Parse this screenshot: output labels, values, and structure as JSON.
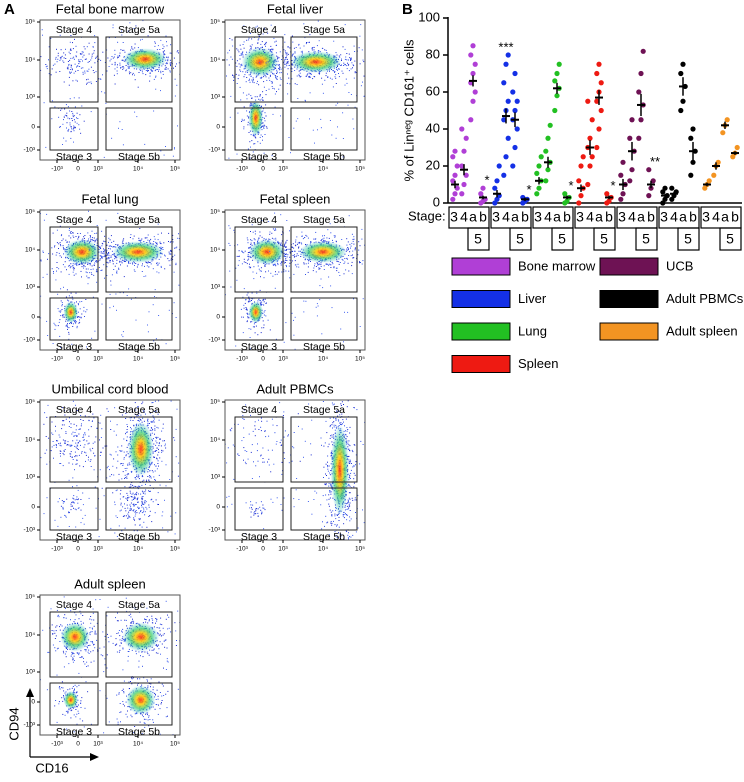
{
  "panel_a": {
    "label": "A",
    "plots": [
      {
        "title": "Fetal bone marrow"
      },
      {
        "title": "Fetal liver"
      },
      {
        "title": "Fetal lung"
      },
      {
        "title": "Fetal spleen"
      },
      {
        "title": "Umbilical cord blood"
      },
      {
        "title": "Adult PBMCs"
      },
      {
        "title": "Adult spleen"
      }
    ],
    "gates": [
      "Stage 4",
      "Stage 5a",
      "Stage 3",
      "Stage 5b"
    ],
    "xticks": [
      "-10³",
      "0",
      "10³",
      "10⁴",
      "10⁵"
    ],
    "yticks": [
      "10⁵",
      "10⁴",
      "10³",
      "0",
      "-10³"
    ],
    "x_axis_label": "CD16",
    "y_axis_label": "CD94"
  },
  "chart_data": {
    "type": "dot",
    "panel_label": "B",
    "y_label": "% of Linⁿᵉᵍ CD161⁺ cells",
    "stage_label": "Stage:",
    "categories": [
      "3",
      "4",
      "a",
      "b"
    ],
    "category_group_label": "5",
    "ylim": [
      0,
      100
    ],
    "yticks": [
      0,
      20,
      40,
      60,
      80,
      100
    ],
    "series": [
      {
        "name": "Bone marrow",
        "color": "#b03fd6",
        "values": [
          10,
          18,
          66,
          3
        ],
        "errors": [
          2,
          3,
          3,
          1
        ],
        "points": [
          [
            2,
            5,
            8,
            12,
            15,
            20,
            25,
            28
          ],
          [
            5,
            10,
            15,
            20,
            28,
            35,
            40
          ],
          [
            45,
            55,
            60,
            65,
            70,
            75,
            80,
            85
          ],
          [
            0,
            1,
            2,
            5,
            8
          ]
        ]
      },
      {
        "name": "Liver",
        "color": "#1430e6",
        "values": [
          5,
          47,
          45,
          2
        ],
        "errors": [
          2,
          4,
          4,
          1
        ],
        "points": [
          [
            0,
            2,
            4,
            8,
            12,
            20
          ],
          [
            15,
            25,
            35,
            45,
            50,
            55,
            65,
            75,
            80
          ],
          [
            20,
            30,
            40,
            45,
            50,
            55,
            60,
            70
          ],
          [
            0,
            1,
            2,
            3
          ]
        ]
      },
      {
        "name": "Lung",
        "color": "#22c022",
        "values": [
          12,
          22,
          62,
          3
        ],
        "errors": [
          2,
          3,
          3,
          1
        ],
        "points": [
          [
            5,
            8,
            12,
            16,
            20,
            25
          ],
          [
            12,
            18,
            22,
            28,
            35,
            42
          ],
          [
            50,
            58,
            62,
            66,
            70,
            75
          ],
          [
            0,
            1,
            3,
            5
          ]
        ]
      },
      {
        "name": "Spleen",
        "color": "#ee1a12",
        "values": [
          8,
          30,
          57,
          3
        ],
        "errors": [
          2,
          4,
          4,
          1
        ],
        "points": [
          [
            0,
            4,
            8,
            12,
            20,
            25
          ],
          [
            10,
            20,
            25,
            30,
            35,
            45,
            55
          ],
          [
            30,
            40,
            50,
            55,
            60,
            65,
            70,
            75
          ],
          [
            0,
            1,
            3,
            5
          ]
        ]
      },
      {
        "name": "UCB",
        "color": "#6e1254",
        "values": [
          10,
          28,
          53,
          10
        ],
        "errors": [
          3,
          5,
          6,
          2
        ],
        "points": [
          [
            2,
            5,
            10,
            15,
            22
          ],
          [
            12,
            18,
            28,
            35,
            45
          ],
          [
            35,
            45,
            53,
            60,
            70,
            82
          ],
          [
            4,
            8,
            12,
            18
          ]
        ]
      },
      {
        "name": "Adult PBMCs",
        "color": "#000000",
        "values": [
          4,
          5,
          63,
          28
        ],
        "errors": [
          1,
          1,
          5,
          5
        ],
        "points": [
          [
            0,
            2,
            4,
            6,
            8
          ],
          [
            2,
            4,
            6,
            8
          ],
          [
            50,
            55,
            63,
            70,
            75
          ],
          [
            15,
            22,
            28,
            35,
            40
          ]
        ]
      },
      {
        "name": "Adult spleen",
        "color": "#f39422",
        "values": [
          10,
          20,
          42,
          27
        ],
        "errors": [
          1,
          2,
          2,
          1
        ],
        "points": [
          [
            8,
            10,
            12
          ],
          [
            15,
            20,
            22
          ],
          [
            38,
            42,
            45
          ],
          [
            25,
            27,
            30
          ]
        ]
      }
    ],
    "annotations": [
      {
        "text": "***",
        "series": 1,
        "category": 1
      },
      {
        "text": "*",
        "series": 0,
        "category": 3
      },
      {
        "text": "*",
        "series": 1,
        "category": 3
      },
      {
        "text": "*",
        "series": 2,
        "category": 3
      },
      {
        "text": "*",
        "series": 3,
        "category": 3
      },
      {
        "text": "**",
        "series": 4,
        "category": 3
      }
    ]
  }
}
